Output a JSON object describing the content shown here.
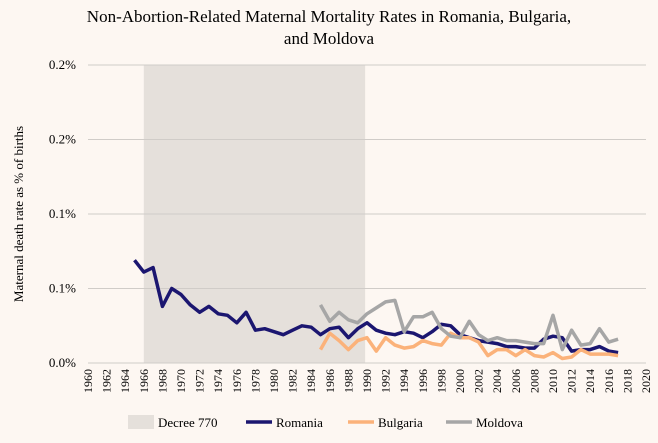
{
  "chart_data": {
    "type": "line",
    "title": "Non-Abortion-Related Maternal Mortality Rates in Romania, Bulgaria, and Moldova",
    "title_lines": [
      "Non-Abortion-Related Maternal Mortality Rates in Romania, Bulgaria,",
      "and Moldova"
    ],
    "xlabel": "",
    "ylabel": "Maternal death rate as % of births",
    "xlim": [
      1960,
      2020
    ],
    "ylim": [
      0,
      0.2
    ],
    "x_ticks": [
      1960,
      1962,
      1964,
      1966,
      1968,
      1970,
      1972,
      1974,
      1976,
      1978,
      1980,
      1982,
      1984,
      1986,
      1988,
      1990,
      1992,
      1994,
      1996,
      1998,
      2000,
      2002,
      2004,
      2006,
      2008,
      2010,
      2012,
      2014,
      2016,
      2018,
      2020
    ],
    "y_ticks": [
      0,
      0.05,
      0.1,
      0.15,
      0.2
    ],
    "y_tick_labels": [
      "0.0%",
      "0.1%",
      "0.1%",
      "0.2%",
      "0.2%"
    ],
    "grid": true,
    "legend_position": "bottom",
    "shaded_region": {
      "name": "Decree 770",
      "x_start": 1966,
      "x_end": 1989.8,
      "color": "#e5e0db"
    },
    "series": [
      {
        "name": "Romania",
        "color": "#1b1670",
        "x_start": 1965,
        "values": [
          0.069,
          0.061,
          0.064,
          0.038,
          0.05,
          0.046,
          0.039,
          0.034,
          0.038,
          0.033,
          0.032,
          0.027,
          0.034,
          0.022,
          0.023,
          0.021,
          0.019,
          0.022,
          0.025,
          0.024,
          0.019,
          0.023,
          0.024,
          0.017,
          0.023,
          0.027,
          0.022,
          0.02,
          0.019,
          0.021,
          0.02,
          0.017,
          0.021,
          0.026,
          0.025,
          0.019,
          0.017,
          0.015,
          0.014,
          0.013,
          0.011,
          0.011,
          0.01,
          0.01,
          0.016,
          0.018,
          0.017,
          0.008,
          0.009,
          0.009,
          0.011,
          0.008,
          0.007
        ]
      },
      {
        "name": "Bulgaria",
        "color": "#fbb27a",
        "x_start": 1985,
        "values": [
          0.009,
          0.02,
          0.015,
          0.009,
          0.015,
          0.017,
          0.008,
          0.017,
          0.012,
          0.01,
          0.011,
          0.015,
          0.013,
          0.012,
          0.02,
          0.017,
          0.017,
          0.014,
          0.005,
          0.009,
          0.009,
          0.005,
          0.009,
          0.005,
          0.004,
          0.007,
          0.003,
          0.004,
          0.009,
          0.006,
          0.006,
          0.006,
          0.005
        ]
      },
      {
        "name": "Moldova",
        "color": "#a6a6a6",
        "x_start": 1985,
        "values": [
          0.039,
          0.028,
          0.034,
          0.029,
          0.027,
          0.033,
          0.037,
          0.041,
          0.042,
          0.021,
          0.031,
          0.031,
          0.034,
          0.023,
          0.018,
          0.017,
          0.028,
          0.019,
          0.015,
          0.017,
          0.015,
          0.015,
          0.014,
          0.013,
          0.013,
          0.032,
          0.009,
          0.022,
          0.012,
          0.013,
          0.023,
          0.014,
          0.016
        ]
      }
    ]
  }
}
